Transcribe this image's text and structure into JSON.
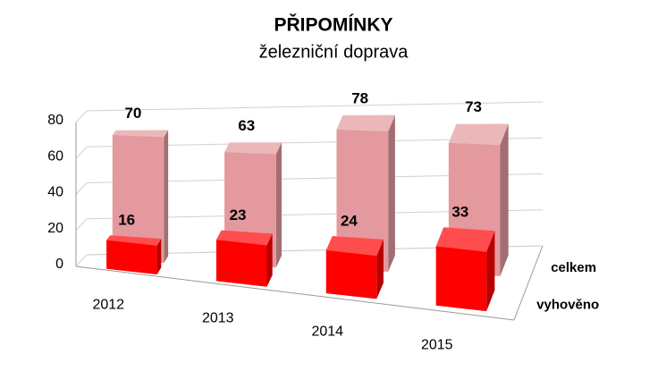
{
  "chart_data": {
    "type": "bar3d",
    "title": "PŘIPOMÍNKY",
    "subtitle": "železniční doprava",
    "categories": [
      "2012",
      "2013",
      "2014",
      "2015"
    ],
    "series": [
      {
        "name": "celkem",
        "color": "#e3999d",
        "values": [
          70,
          63,
          78,
          73
        ]
      },
      {
        "name": "vyhověno",
        "color": "#ff0000",
        "values": [
          16,
          23,
          24,
          33
        ]
      }
    ],
    "ylim": [
      0,
      80
    ],
    "yticks": [
      0,
      20,
      40,
      60,
      80
    ],
    "grid": true
  }
}
